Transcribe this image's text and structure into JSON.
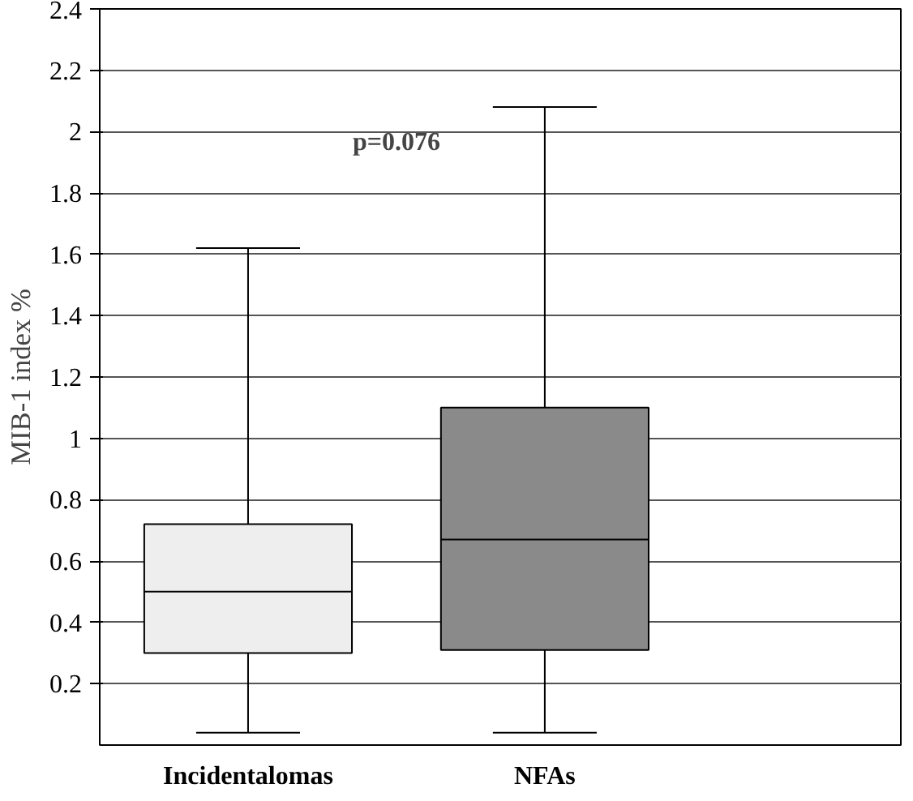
{
  "chart_data": {
    "type": "box",
    "ylabel": "MIB-1 index %",
    "categories": [
      "Incidentalomas",
      "NFAs"
    ],
    "colors": [
      "#eeeeee",
      "#8a8a8a"
    ],
    "boxes": [
      {
        "low": 0.04,
        "q1": 0.3,
        "median": 0.5,
        "q3": 0.72,
        "high": 1.62
      },
      {
        "low": 0.04,
        "q1": 0.31,
        "median": 0.67,
        "q3": 1.1,
        "high": 2.08
      }
    ],
    "ylim": [
      0,
      2.4
    ],
    "yticks": [
      0.2,
      0.4,
      0.6,
      0.8,
      1,
      1.2,
      1.4,
      1.6,
      1.8,
      2,
      2.2,
      2.4
    ],
    "grid": "y",
    "annotations": [
      "p=0.076"
    ]
  }
}
